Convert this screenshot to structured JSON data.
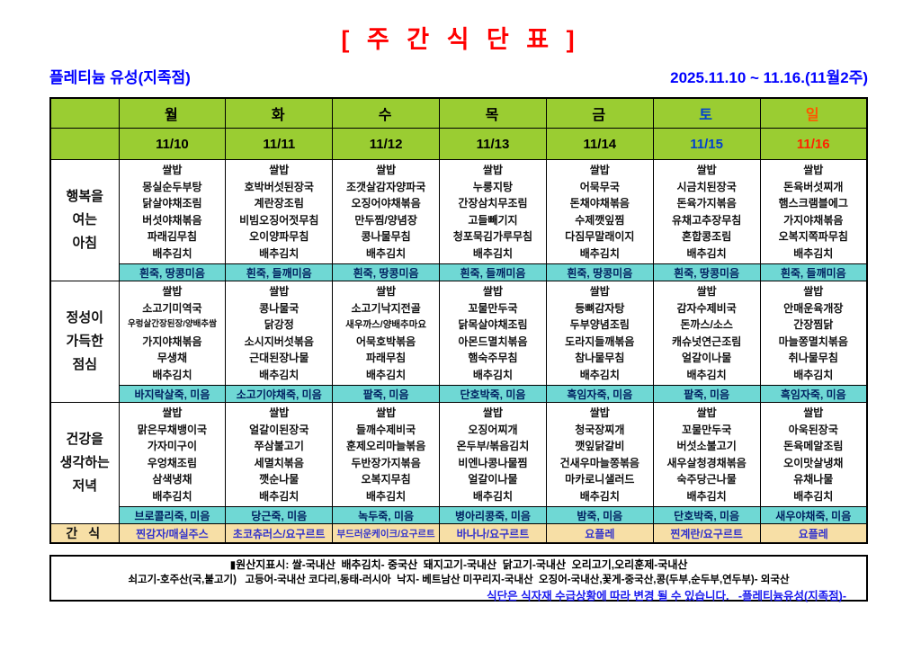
{
  "title": "[ 주 간 식 단 표 ]",
  "store": "플레티늄 유성(지족점)",
  "week_range": "2025.11.10 ~ 11.16.(11월2주)",
  "colors": {
    "title_red": "#FF0000",
    "accent_blue": "#0000FF",
    "header_green": "#9ACD32",
    "porridge_cyan": "#6FD8D4",
    "snack_tan": "#F7DFA6",
    "saturday_blue": "#0040D0",
    "sunday_red": "#FF3300"
  },
  "snack_label": "간 식",
  "sections": [
    {
      "key": "breakfast",
      "label_lines": [
        "행복을",
        "여는",
        "아침"
      ]
    },
    {
      "key": "lunch",
      "label_lines": [
        "정성이",
        "가득한",
        "점심"
      ]
    },
    {
      "key": "dinner",
      "label_lines": [
        "건강을",
        "생각하는",
        "저녁"
      ]
    }
  ],
  "days": [
    {
      "key": "mon",
      "name": "월",
      "date": "11/10",
      "name_color": "#000000",
      "date_color": "#000000",
      "breakfast": {
        "items": [
          "쌀밥",
          "몽실순두부탕",
          "닭살야채조림",
          "버섯야채볶음",
          "파래김무침",
          "배추김치"
        ],
        "porridge": "흰죽, 땅콩미음"
      },
      "lunch": {
        "items": [
          "쌀밥",
          "소고기미역국",
          "우렁살간장된장/양배추쌈",
          "가지야채볶음",
          "무생채",
          "배추김치"
        ],
        "porridge": "바지락살죽, 미음"
      },
      "dinner": {
        "items": [
          "쌀밥",
          "맑은무채뱅이국",
          "가자미구이",
          "우엉채조림",
          "삼색냉채",
          "배추김치"
        ],
        "porridge": "브로콜리죽, 미음"
      },
      "snack": "찐감자/매실주스"
    },
    {
      "key": "tue",
      "name": "화",
      "date": "11/11",
      "name_color": "#000000",
      "date_color": "#000000",
      "breakfast": {
        "items": [
          "쌀밥",
          "호박버섯된장국",
          "계란장조림",
          "비빔오징어젓무침",
          "오이양파무침",
          "배추김치"
        ],
        "porridge": "흰죽, 들깨미음"
      },
      "lunch": {
        "items": [
          "쌀밥",
          "콩나물국",
          "닭강정",
          "소시지버섯볶음",
          "근대된장나물",
          "배추김치"
        ],
        "porridge": "소고기야채죽, 미음"
      },
      "dinner": {
        "items": [
          "쌀밥",
          "얼갈이된장국",
          "쭈삼불고기",
          "세멸치볶음",
          "깻순나물",
          "배추김치"
        ],
        "porridge": "당근죽, 미음"
      },
      "snack": "초코츄러스/요구르트"
    },
    {
      "key": "wed",
      "name": "수",
      "date": "11/12",
      "name_color": "#000000",
      "date_color": "#000000",
      "breakfast": {
        "items": [
          "쌀밥",
          "조갯살감자양파국",
          "오징어야채볶음",
          "만두찜/양념장",
          "콩나물무침",
          "배추김치"
        ],
        "porridge": "흰죽, 땅콩미음"
      },
      "lunch": {
        "items": [
          "쌀밥",
          "소고기낙지전골",
          "새우까스/양배추마요",
          "어묵호박볶음",
          "파래무침",
          "배추김치"
        ],
        "porridge": "팥죽, 미음"
      },
      "dinner": {
        "items": [
          "쌀밥",
          "들깨수제비국",
          "훈제오리마늘볶음",
          "두반장가지볶음",
          "오복지무침",
          "배추김치"
        ],
        "porridge": "녹두죽, 미음"
      },
      "snack": "부드러운케이크/요구르트"
    },
    {
      "key": "thu",
      "name": "목",
      "date": "11/13",
      "name_color": "#000000",
      "date_color": "#000000",
      "breakfast": {
        "items": [
          "쌀밥",
          "누룽지탕",
          "간장삼치무조림",
          "고들빼기지",
          "청포묵김가루무침",
          "배추김치"
        ],
        "porridge": "흰죽, 들깨미음"
      },
      "lunch": {
        "items": [
          "쌀밥",
          "꼬물만두국",
          "닭목살야채조림",
          "아몬드멸치볶음",
          "햄숙주무침",
          "배추김치"
        ],
        "porridge": "단호박죽, 미음"
      },
      "dinner": {
        "items": [
          "쌀밥",
          "오징어찌개",
          "온두부/볶음김치",
          "비엔나콩나물찜",
          "얼갈이나물",
          "배추김치"
        ],
        "porridge": "병아리콩죽, 미음"
      },
      "snack": "바나나/요구르트"
    },
    {
      "key": "fri",
      "name": "금",
      "date": "11/14",
      "name_color": "#000000",
      "date_color": "#000000",
      "breakfast": {
        "items": [
          "쌀밥",
          "어묵무국",
          "돈채야채볶음",
          "수제깻잎찜",
          "다짐무말래이지",
          "배추김치"
        ],
        "porridge": "흰죽, 땅콩미음"
      },
      "lunch": {
        "items": [
          "쌀밥",
          "등뼈감자탕",
          "두부양념조림",
          "도라지들깨볶음",
          "참나물무침",
          "배추김치"
        ],
        "porridge": "흑임자죽, 미음"
      },
      "dinner": {
        "items": [
          "쌀밥",
          "청국장찌개",
          "깻잎닭갈비",
          "건새우마늘쫑볶음",
          "마카로니샐러드",
          "배추김치"
        ],
        "porridge": "밤죽, 미음"
      },
      "snack": "요플레"
    },
    {
      "key": "sat",
      "name": "토",
      "date": "11/15",
      "name_color": "#0040D0",
      "date_color": "#0040D0",
      "breakfast": {
        "items": [
          "쌀밥",
          "시금치된장국",
          "돈육가지볶음",
          "유채고추장무침",
          "혼합콩조림",
          "배추김치"
        ],
        "porridge": "흰죽, 땅콩미음"
      },
      "lunch": {
        "items": [
          "쌀밥",
          "감자수제비국",
          "돈까스/소스",
          "캐슈넛연근조림",
          "얼갈이나물",
          "배추김치"
        ],
        "porridge": "팥죽, 미음"
      },
      "dinner": {
        "items": [
          "쌀밥",
          "꼬물만두국",
          "버섯소불고기",
          "새우살청경채볶음",
          "숙주당근나물",
          "배추김치"
        ],
        "porridge": "단호박죽, 미음"
      },
      "snack": "찐계란/요구르트"
    },
    {
      "key": "sun",
      "name": "일",
      "date": "11/16",
      "name_color": "#FF5500",
      "date_color": "#FF2200",
      "breakfast": {
        "items": [
          "쌀밥",
          "돈육버섯찌개",
          "햄스크램블에그",
          "가지야채볶음",
          "오복지쪽파무침",
          "배추김치"
        ],
        "porridge": "흰죽, 들깨미음"
      },
      "lunch": {
        "items": [
          "쌀밥",
          "안매운육개장",
          "간장찜닭",
          "마늘쫑멸치볶음",
          "취나물무침",
          "배추김치"
        ],
        "porridge": "흑임자죽, 미음"
      },
      "dinner": {
        "items": [
          "쌀밥",
          "아욱된장국",
          "돈육메알조림",
          "오이맛살냉채",
          "유채나물",
          "배추김치"
        ],
        "porridge": "새우야채죽, 미음"
      },
      "snack": "요플레"
    }
  ],
  "footer": {
    "line1": "▮원산지표시: 쌀-국내산  배추김치- 중국산  돼지고기-국내산  닭고기-국내산  오리고기,오리훈제-국내산",
    "line2": "쇠고기-호주산(국,불고기)   고등어-국내산 코다리,동태-러시아  낙지- 베트남산 미꾸리지-국내산  오징어-국내산,꽃게-중국산,콩(두부,순두부,연두부)- 외국산",
    "line3": "식단은 식자재 수급상황에 따라 변경 될 수 있습니다.   -플레티늄유성(지족점)-"
  }
}
